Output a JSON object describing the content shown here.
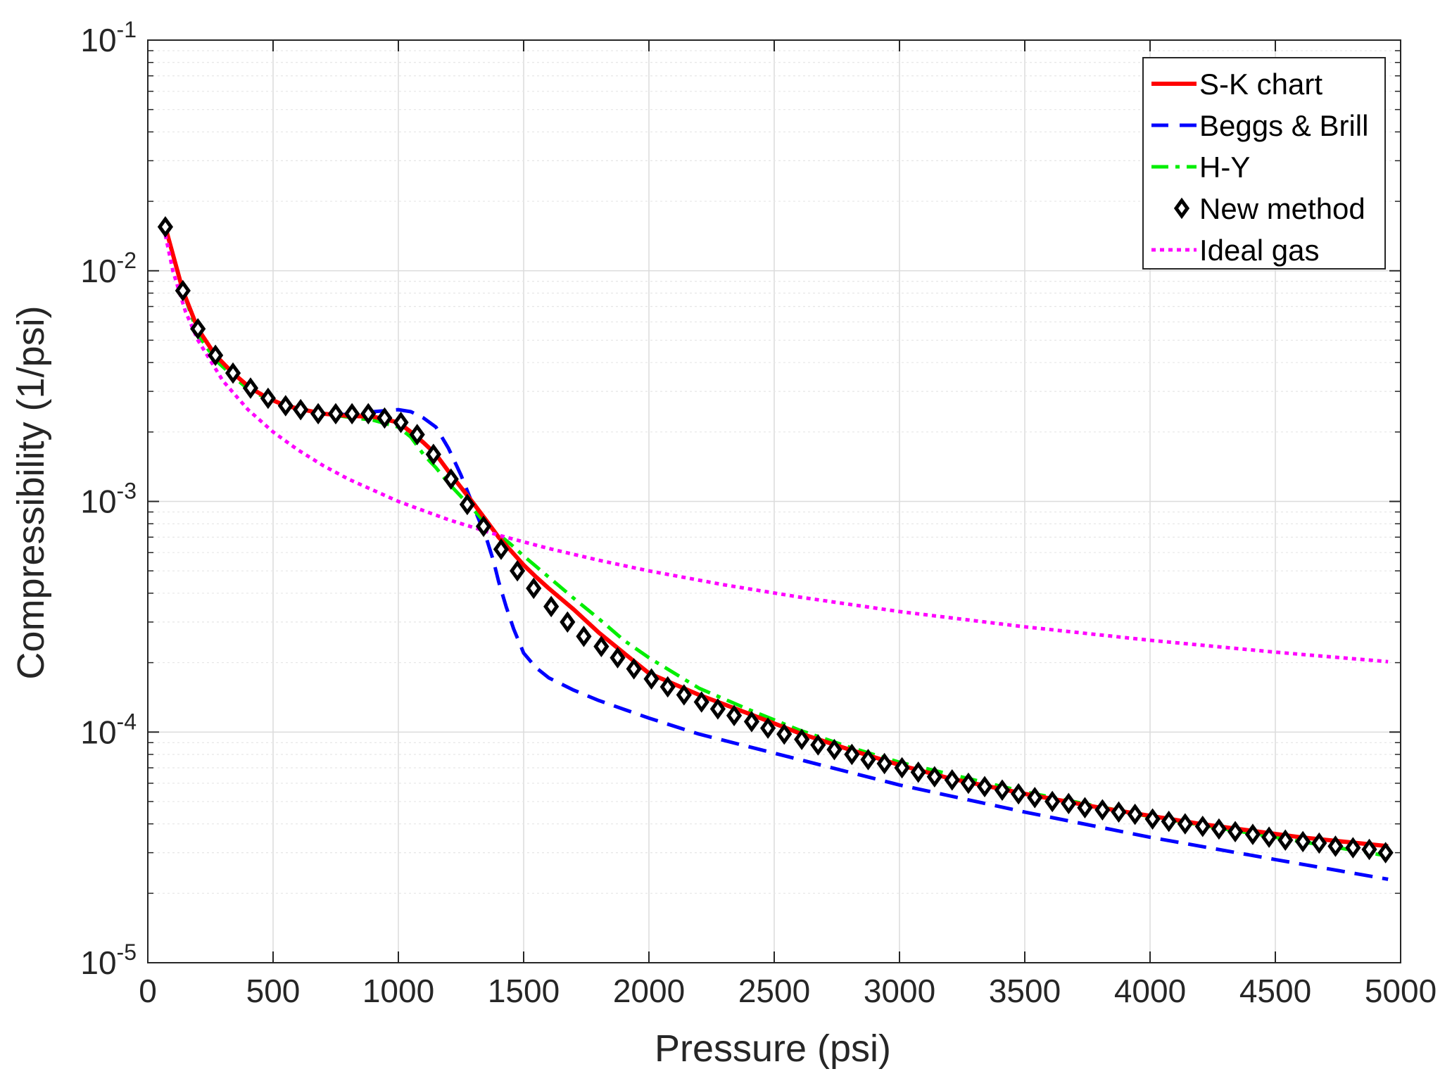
{
  "chart_data": {
    "type": "line",
    "title": "",
    "xlabel": "Pressure (psi)",
    "ylabel": "Compressibility (1/psi)",
    "xlim": [
      0,
      5000
    ],
    "ylim": [
      1e-05,
      0.1
    ],
    "yscale": "log",
    "grid": true,
    "legend_position": "top-right",
    "x_ticks": [
      0,
      500,
      1000,
      1500,
      2000,
      2500,
      3000,
      3500,
      4000,
      4500,
      5000
    ],
    "x_tick_labels": [
      "0",
      "500",
      "1000",
      "1500",
      "2000",
      "2500",
      "3000",
      "3500",
      "4000",
      "4500",
      "5000"
    ],
    "y_ticks": [
      {
        "value": 0.1,
        "base": "10",
        "exp": "-1"
      },
      {
        "value": 0.01,
        "base": "10",
        "exp": "-2"
      },
      {
        "value": 0.001,
        "base": "10",
        "exp": "-3"
      },
      {
        "value": 0.0001,
        "base": "10",
        "exp": "-4"
      },
      {
        "value": 1e-05,
        "base": "10",
        "exp": "-5"
      }
    ],
    "series": [
      {
        "name": "S-K chart",
        "color": "#ff0000",
        "style": "solid",
        "x": [
          70,
          140,
          200,
          270,
          340,
          410,
          480,
          550,
          620,
          700,
          800,
          900,
          1000,
          1050,
          1100,
          1150,
          1200,
          1250,
          1300,
          1350,
          1400,
          1450,
          1500,
          1550,
          1600,
          1700,
          1800,
          1900,
          2000,
          2200,
          2400,
          2600,
          2800,
          3000,
          3200,
          3500,
          3800,
          4200,
          4600,
          4950
        ],
        "y": [
          0.0155,
          0.0082,
          0.0056,
          0.0043,
          0.0036,
          0.0031,
          0.0028,
          0.0026,
          0.0025,
          0.0024,
          0.00235,
          0.00233,
          0.0022,
          0.002,
          0.0018,
          0.0016,
          0.00135,
          0.00115,
          0.00098,
          0.00083,
          0.0007,
          0.00061,
          0.00053,
          0.00047,
          0.00042,
          0.00034,
          0.00027,
          0.00022,
          0.00018,
          0.000145,
          0.00012,
          9.9e-05,
          8.4e-05,
          7.2e-05,
          6.3e-05,
          5.4e-05,
          4.7e-05,
          4e-05,
          3.5e-05,
          3.2e-05
        ]
      },
      {
        "name": "Beggs & Brill",
        "color": "#0000ff",
        "style": "dashed",
        "x": [
          70,
          140,
          200,
          270,
          340,
          410,
          480,
          550,
          620,
          700,
          800,
          900,
          1000,
          1050,
          1100,
          1150,
          1200,
          1250,
          1300,
          1350,
          1380,
          1400,
          1430,
          1460,
          1500,
          1550,
          1600,
          1700,
          1800,
          2000,
          2200,
          2500,
          3000,
          3500,
          4000,
          4500,
          4950
        ],
        "y": [
          0.0155,
          0.0082,
          0.0056,
          0.0043,
          0.0036,
          0.0031,
          0.0028,
          0.0026,
          0.0025,
          0.0024,
          0.00238,
          0.00245,
          0.0025,
          0.00245,
          0.0023,
          0.0021,
          0.0017,
          0.0013,
          0.00095,
          0.0007,
          0.00055,
          0.00045,
          0.00035,
          0.00028,
          0.00022,
          0.00019,
          0.000172,
          0.000152,
          0.000137,
          0.000115,
          9.8e-05,
          8.1e-05,
          5.9e-05,
          4.5e-05,
          3.5e-05,
          2.8e-05,
          2.3e-05
        ]
      },
      {
        "name": "H-Y",
        "color": "#00ee00",
        "style": "dashdot",
        "x": [
          70,
          140,
          200,
          270,
          340,
          410,
          480,
          550,
          620,
          700,
          800,
          900,
          1000,
          1050,
          1100,
          1150,
          1200,
          1250,
          1300,
          1350,
          1400,
          1450,
          1500,
          1600,
          1700,
          1800,
          1900,
          2000,
          2200,
          2400,
          2600,
          2800,
          3000,
          3500,
          4000,
          4500,
          4950
        ],
        "y": [
          0.0155,
          0.0082,
          0.0053,
          0.0041,
          0.0035,
          0.003,
          0.0028,
          0.0026,
          0.0025,
          0.0024,
          0.00232,
          0.00225,
          0.0021,
          0.0019,
          0.0016,
          0.0014,
          0.0012,
          0.00105,
          0.00092,
          0.0008,
          0.00072,
          0.00065,
          0.00058,
          0.00047,
          0.00038,
          0.00031,
          0.00025,
          0.00021,
          0.000155,
          0.000125,
          0.000102,
          8.6e-05,
          7.4e-05,
          5.5e-05,
          4.3e-05,
          3.5e-05,
          2.9e-05
        ]
      },
      {
        "name": "New method",
        "color": "#000000",
        "style": "markers",
        "x": [
          70,
          140,
          200,
          270,
          340,
          410,
          480,
          550,
          610,
          680,
          750,
          815,
          880,
          945,
          1010,
          1075,
          1140,
          1210,
          1275,
          1340,
          1410,
          1475,
          1540,
          1610,
          1675,
          1740,
          1810,
          1875,
          1940,
          2010,
          2075,
          2140,
          2210,
          2275,
          2340,
          2410,
          2475,
          2540,
          2610,
          2675,
          2740,
          2810,
          2875,
          2940,
          3010,
          3075,
          3140,
          3210,
          3275,
          3340,
          3410,
          3475,
          3540,
          3610,
          3675,
          3740,
          3810,
          3875,
          3940,
          4010,
          4075,
          4140,
          4210,
          4275,
          4340,
          4410,
          4475,
          4540,
          4610,
          4675,
          4740,
          4810,
          4875,
          4940
        ],
        "y": [
          0.0155,
          0.0082,
          0.0056,
          0.0043,
          0.0036,
          0.0031,
          0.0028,
          0.0026,
          0.0025,
          0.0024,
          0.0024,
          0.0024,
          0.0024,
          0.0023,
          0.0022,
          0.00195,
          0.0016,
          0.00125,
          0.00097,
          0.00078,
          0.00062,
          0.0005,
          0.00042,
          0.00035,
          0.0003,
          0.00026,
          0.000235,
          0.00021,
          0.000188,
          0.00017,
          0.000157,
          0.000145,
          0.000135,
          0.000126,
          0.000118,
          0.000111,
          0.000104,
          9.8e-05,
          9.3e-05,
          8.8e-05,
          8.4e-05,
          8e-05,
          7.6e-05,
          7.3e-05,
          7e-05,
          6.7e-05,
          6.4e-05,
          6.2e-05,
          6e-05,
          5.8e-05,
          5.6e-05,
          5.4e-05,
          5.2e-05,
          5e-05,
          4.9e-05,
          4.7e-05,
          4.6e-05,
          4.5e-05,
          4.4e-05,
          4.2e-05,
          4.1e-05,
          4e-05,
          3.9e-05,
          3.8e-05,
          3.7e-05,
          3.6e-05,
          3.5e-05,
          3.4e-05,
          3.35e-05,
          3.3e-05,
          3.2e-05,
          3.15e-05,
          3.1e-05,
          3e-05
        ]
      },
      {
        "name": "Ideal gas",
        "color": "#ff00ff",
        "style": "dotted",
        "x": [
          70,
          100,
          150,
          200,
          300,
          400,
          500,
          600,
          700,
          800,
          1000,
          1200,
          1400,
          1600,
          1800,
          2000,
          2300,
          2600,
          3000,
          3500,
          4000,
          4500,
          4950
        ],
        "y": [
          0.0143,
          0.01,
          0.00667,
          0.005,
          0.00333,
          0.0025,
          0.002,
          0.00167,
          0.00143,
          0.00125,
          0.001,
          0.000833,
          0.000714,
          0.000625,
          0.000556,
          0.0005,
          0.000435,
          0.000385,
          0.000333,
          0.000286,
          0.00025,
          0.000222,
          0.000202
        ]
      }
    ]
  }
}
